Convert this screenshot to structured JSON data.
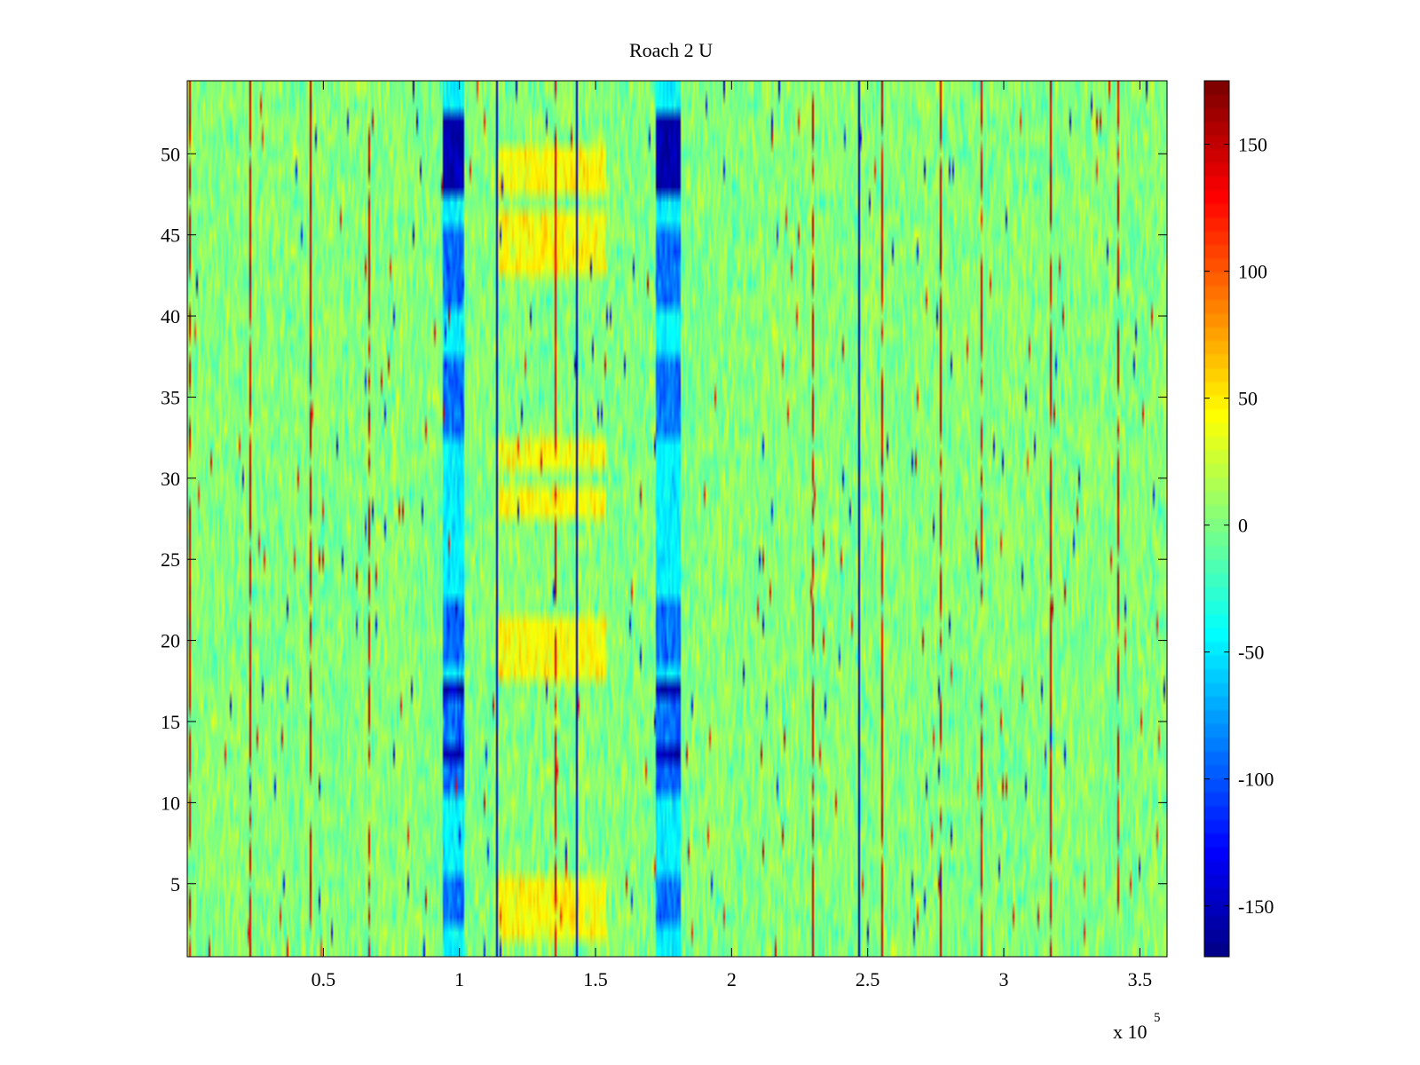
{
  "chart_data": {
    "type": "heatmap",
    "title": "Roach 2 U",
    "xlabel": "",
    "ylabel": "",
    "x_multiplier_label": "x 10",
    "x_multiplier_exponent": "5",
    "xlim": [
      0,
      360000
    ],
    "ylim": [
      0.5,
      54.5
    ],
    "x_ticks": [
      50000,
      100000,
      150000,
      200000,
      250000,
      300000,
      350000
    ],
    "x_tick_labels": [
      "0.5",
      "1",
      "1.5",
      "2",
      "2.5",
      "3",
      "3.5"
    ],
    "y_ticks": [
      5,
      10,
      15,
      20,
      25,
      30,
      35,
      40,
      45,
      50
    ],
    "y_tick_labels": [
      "5",
      "10",
      "15",
      "20",
      "25",
      "30",
      "35",
      "40",
      "45",
      "50"
    ],
    "rows": 54,
    "colormap": "jet",
    "color_range": [
      -170,
      175
    ],
    "colorbar_ticks": [
      150,
      100,
      50,
      0,
      -50,
      -100,
      -150
    ],
    "colorbar_tick_labels": [
      "150",
      "100",
      "50",
      "0",
      "-50",
      "-100",
      "-150"
    ],
    "background_mean": 5,
    "features": {
      "low_band_1": {
        "x_range": [
          94000,
          102000
        ],
        "strong_rows": [
          [
            48,
            52
          ],
          [
            17,
            17
          ],
          [
            13,
            13
          ]
        ],
        "medium_rows": [
          [
            41,
            45
          ],
          [
            33,
            37
          ],
          [
            19,
            22
          ],
          [
            11,
            16
          ],
          [
            3,
            5
          ]
        ],
        "strong_value": -155,
        "medium_value": -90
      },
      "low_band_2": {
        "x_range": [
          172000,
          181000
        ],
        "strong_rows": [
          [
            48,
            52
          ],
          [
            17,
            17
          ],
          [
            13,
            13
          ]
        ],
        "medium_rows": [
          [
            41,
            45
          ],
          [
            33,
            37
          ],
          [
            19,
            22
          ],
          [
            11,
            16
          ],
          [
            3,
            5
          ]
        ],
        "strong_value": -155,
        "medium_value": -90
      },
      "high_region": {
        "x_range": [
          114000,
          154000
        ],
        "rows": [
          [
            48,
            50
          ],
          [
            43,
            46
          ],
          [
            31,
            32
          ],
          [
            28,
            29
          ],
          [
            18,
            21
          ],
          [
            2,
            5
          ]
        ],
        "value": 45
      },
      "red_stripes_x": [
        1000,
        23000,
        45000,
        67000,
        135000,
        230000,
        255000,
        277000,
        292000,
        317000,
        342000
      ],
      "dark_stripes_x": [
        114000,
        143000,
        247000
      ]
    }
  }
}
